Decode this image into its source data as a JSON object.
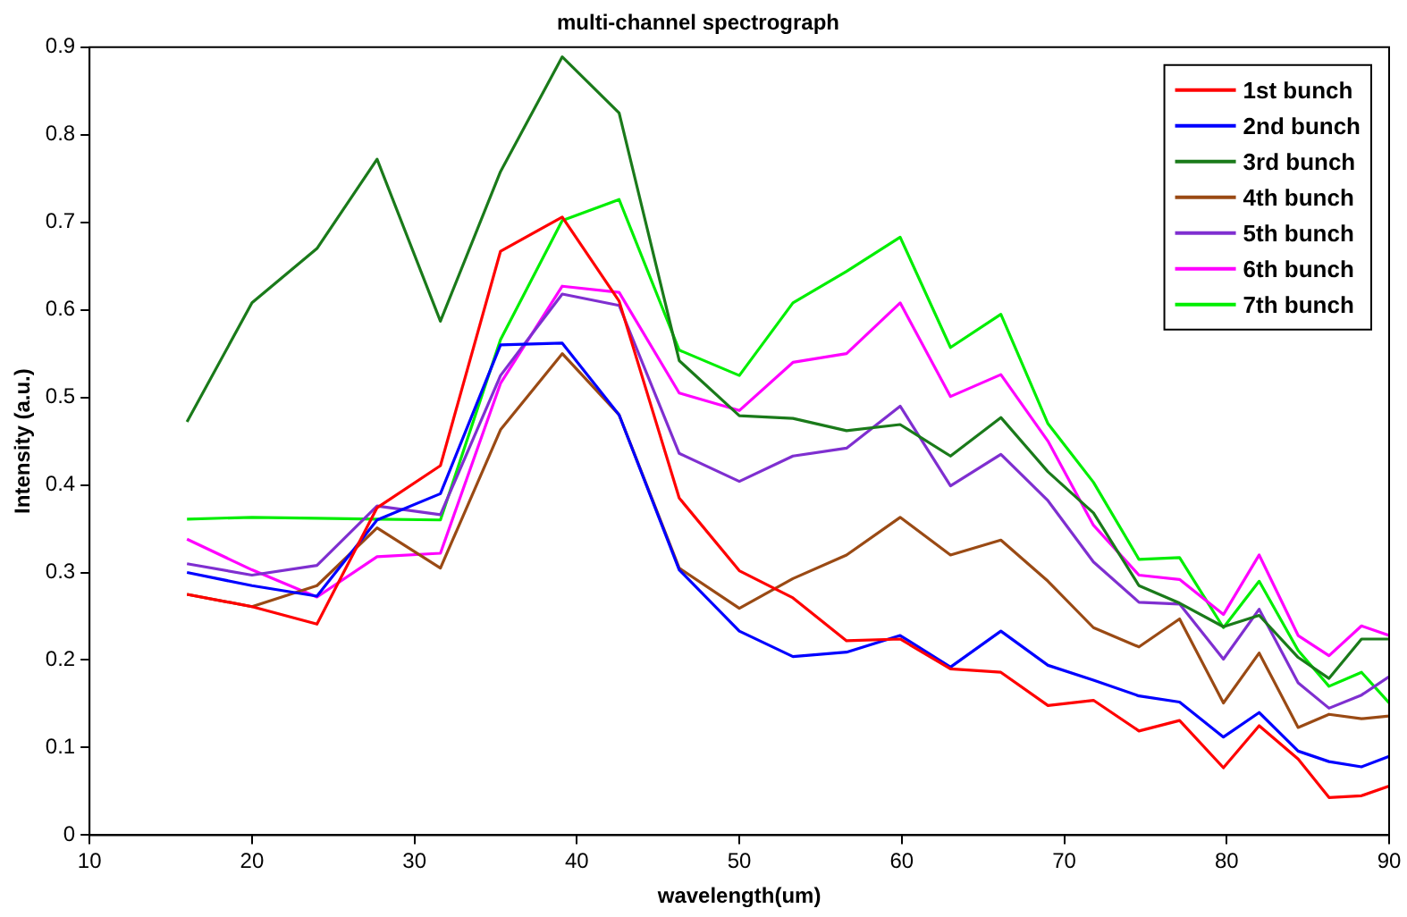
{
  "chart_data": {
    "type": "line",
    "title": "multi-channel spectrograph",
    "xlabel": "wavelength(um)",
    "ylabel": "Intensity (a.u.)",
    "x": [
      16,
      20,
      24,
      27.7,
      31.6,
      35.3,
      39.1,
      42.6,
      46.3,
      50,
      53.3,
      56.6,
      59.9,
      63,
      66.1,
      69,
      71.8,
      74.6,
      77.1,
      79.8,
      82,
      84.4,
      86.3,
      88.3,
      90
    ],
    "series": [
      {
        "name": "1st bunch",
        "color": "#ff0000",
        "values": [
          0.275,
          0.261,
          0.241,
          0.374,
          0.422,
          0.667,
          0.706,
          0.61,
          0.385,
          0.302,
          0.271,
          0.222,
          0.224,
          0.19,
          0.186,
          0.148,
          0.154,
          0.119,
          0.131,
          0.077,
          0.125,
          0.087,
          0.043,
          0.045,
          0.056
        ]
      },
      {
        "name": "2nd bunch",
        "color": "#0000ff",
        "values": [
          0.3,
          0.285,
          0.273,
          0.36,
          0.39,
          0.56,
          0.562,
          0.48,
          0.303,
          0.233,
          0.204,
          0.209,
          0.228,
          0.192,
          0.233,
          0.194,
          0.177,
          0.159,
          0.152,
          0.112,
          0.14,
          0.096,
          0.084,
          0.078,
          0.09
        ]
      },
      {
        "name": "3rd bunch",
        "color": "#1a7a1a",
        "values": [
          0.472,
          0.608,
          0.67,
          0.772,
          0.587,
          0.758,
          0.889,
          0.825,
          0.542,
          0.479,
          0.476,
          0.462,
          0.469,
          0.433,
          0.477,
          0.415,
          0.368,
          0.285,
          0.265,
          0.238,
          0.251,
          0.203,
          0.179,
          0.224,
          0.224
        ]
      },
      {
        "name": "4th bunch",
        "color": "#9a4a14",
        "values": [
          0.275,
          0.261,
          0.285,
          0.351,
          0.305,
          0.463,
          0.55,
          0.48,
          0.305,
          0.259,
          0.293,
          0.32,
          0.363,
          0.32,
          0.337,
          0.29,
          0.237,
          0.215,
          0.247,
          0.151,
          0.208,
          0.123,
          0.138,
          0.133,
          0.136
        ]
      },
      {
        "name": "5th bunch",
        "color": "#7f2fd0",
        "values": [
          0.31,
          0.297,
          0.308,
          0.376,
          0.366,
          0.525,
          0.618,
          0.605,
          0.436,
          0.404,
          0.433,
          0.442,
          0.49,
          0.399,
          0.435,
          0.382,
          0.312,
          0.266,
          0.264,
          0.201,
          0.258,
          0.174,
          0.145,
          0.16,
          0.181
        ]
      },
      {
        "name": "6th bunch",
        "color": "#ff00ff",
        "values": [
          0.338,
          0.303,
          0.272,
          0.318,
          0.322,
          0.516,
          0.627,
          0.62,
          0.505,
          0.485,
          0.54,
          0.55,
          0.608,
          0.501,
          0.526,
          0.45,
          0.354,
          0.297,
          0.292,
          0.252,
          0.32,
          0.228,
          0.205,
          0.239,
          0.228
        ]
      },
      {
        "name": "7th bunch",
        "color": "#00ee00",
        "values": [
          0.361,
          0.363,
          0.362,
          0.361,
          0.36,
          0.566,
          0.702,
          0.726,
          0.554,
          0.525,
          0.608,
          0.644,
          0.683,
          0.557,
          0.595,
          0.47,
          0.403,
          0.315,
          0.317,
          0.237,
          0.29,
          0.211,
          0.17,
          0.186,
          0.151
        ]
      }
    ],
    "xlim": [
      10,
      90
    ],
    "xticks": [
      10,
      20,
      30,
      40,
      50,
      60,
      70,
      80,
      90
    ],
    "ylim": [
      0,
      0.9
    ],
    "yticks": [
      0,
      0.1,
      0.2,
      0.3,
      0.4,
      0.5,
      0.6,
      0.7,
      0.8,
      0.9
    ],
    "legend": "top right",
    "marker": "none",
    "line_style": "solid"
  }
}
